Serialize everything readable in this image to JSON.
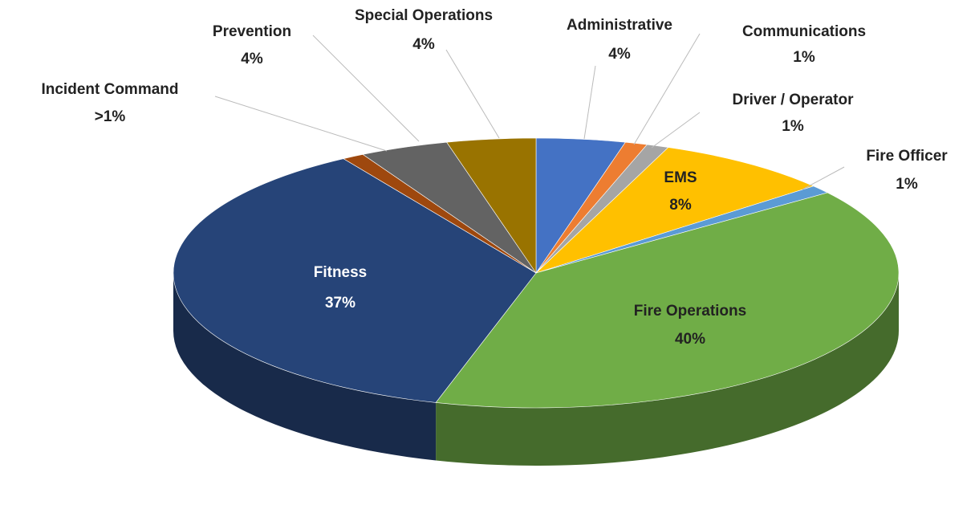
{
  "chart_data": {
    "type": "pie3d",
    "categories": [
      "Administrative",
      "Communications",
      "Driver / Operator",
      "EMS",
      "Fire Officer",
      "Fire Operations",
      "Fitness",
      "Incident Command",
      "Prevention",
      "Special Operations"
    ],
    "values": [
      4,
      1,
      1,
      8,
      1,
      40,
      37,
      1,
      4,
      4
    ],
    "value_labels": [
      "4%",
      "1%",
      "1%",
      "8%",
      "1%",
      "40%",
      "37%",
      ">1%",
      "4%",
      "4%"
    ],
    "colors": [
      "#4472c4",
      "#ed7d31",
      "#a5a5a5",
      "#ffc000",
      "#5b9bd5",
      "#70ad47",
      "#264478",
      "#9e480e",
      "#636363",
      "#997300"
    ]
  }
}
